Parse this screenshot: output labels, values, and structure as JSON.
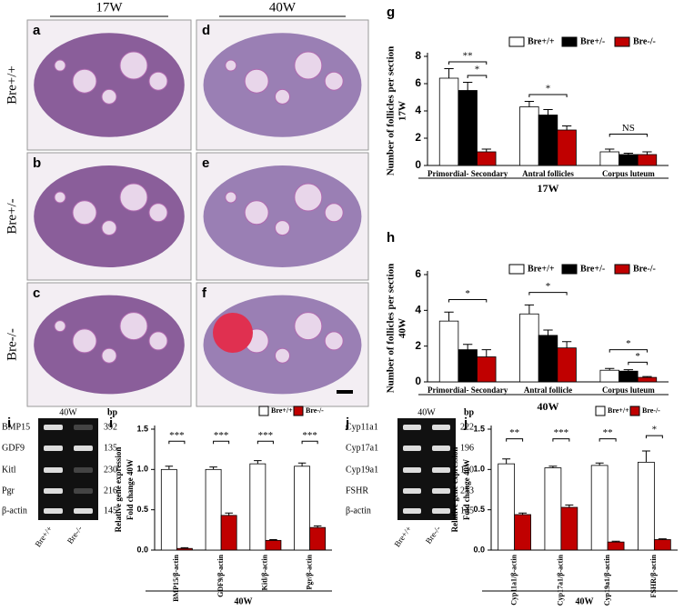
{
  "histology": {
    "columns": [
      "17W",
      "40W"
    ],
    "rows": [
      "Bre+/+",
      "Bre+/-",
      "Bre-/-"
    ],
    "panels": [
      "a",
      "d",
      "b",
      "e",
      "c",
      "f"
    ]
  },
  "gels": [
    {
      "panel": "i",
      "header": "40W",
      "bp_label": "bp",
      "genes": [
        "BMP15",
        "GDF9",
        "Kitl",
        "Pgr",
        "β-actin"
      ],
      "sizes": [
        392,
        135,
        230,
        216,
        145
      ],
      "lanes": [
        "Bre+/+",
        "Bre-/-"
      ]
    },
    {
      "panel": "j",
      "header": "40W",
      "bp_label": "bp",
      "genes": [
        "Cyp11a1",
        "Cyp17a1",
        "Cyp19a1",
        "FSHR",
        "β-actin"
      ],
      "sizes": [
        222,
        196,
        130,
        213,
        145
      ],
      "lanes": [
        "Bre+/+",
        "Bre-/-"
      ]
    }
  ],
  "chart_data": [
    {
      "type": "bar",
      "panel": "g",
      "ylabel": [
        "Number of follicles per section",
        "17W"
      ],
      "xlabel": "17W",
      "categories": [
        "Primordial- Secondary",
        "Antral follicles",
        "Corpus luteum"
      ],
      "series": [
        {
          "name": "Bre+/+",
          "color": "#ffffff",
          "values": [
            6.4,
            4.3,
            1.0
          ],
          "errors": [
            0.7,
            0.4,
            0.2
          ]
        },
        {
          "name": "Bre+/-",
          "color": "#000000",
          "values": [
            5.5,
            3.7,
            0.8
          ],
          "errors": [
            0.6,
            0.4,
            0.1
          ]
        },
        {
          "name": "Bre-/-",
          "color": "#c00000",
          "values": [
            1.0,
            2.6,
            0.8
          ],
          "errors": [
            0.2,
            0.3,
            0.2
          ]
        }
      ],
      "ylim": [
        0,
        8
      ],
      "yticks": [
        0,
        2,
        4,
        6,
        8
      ],
      "annotations": [
        "**",
        "*",
        "*",
        "NS"
      ]
    },
    {
      "type": "bar",
      "panel": "h",
      "ylabel": [
        "Number of follicles per section",
        "40W"
      ],
      "xlabel": "40W",
      "categories": [
        "Primordial- Secondary",
        "Antral follicle",
        "Corpus luteum"
      ],
      "series": [
        {
          "name": "Bre+/+",
          "color": "#ffffff",
          "values": [
            3.4,
            3.8,
            0.65
          ],
          "errors": [
            0.5,
            0.5,
            0.1
          ]
        },
        {
          "name": "Bre+/-",
          "color": "#000000",
          "values": [
            1.8,
            2.6,
            0.6
          ],
          "errors": [
            0.3,
            0.3,
            0.08
          ]
        },
        {
          "name": "Bre-/-",
          "color": "#c00000",
          "values": [
            1.4,
            1.9,
            0.25
          ],
          "errors": [
            0.4,
            0.35,
            0.05
          ]
        }
      ],
      "ylim": [
        0,
        6
      ],
      "yticks": [
        0,
        2,
        4,
        6
      ],
      "annotations": [
        "*",
        "*",
        "*",
        "*"
      ]
    },
    {
      "type": "bar",
      "panel": "i",
      "ylabel": [
        "Relative gene expression",
        "Fold change 40W"
      ],
      "xlabel": "40W",
      "categories": [
        "BMP15/β-actin",
        "GDF9/β-actin",
        "Kitl/β-actin",
        "Pgr/β-actin"
      ],
      "series": [
        {
          "name": "Bre+/+",
          "color": "#ffffff",
          "values": [
            1.0,
            1.0,
            1.07,
            1.04
          ],
          "errors": [
            0.04,
            0.03,
            0.04,
            0.04
          ]
        },
        {
          "name": "Bre-/-",
          "color": "#c00000",
          "values": [
            0.02,
            0.43,
            0.12,
            0.28
          ],
          "errors": [
            0.01,
            0.03,
            0.01,
            0.02
          ]
        }
      ],
      "ylim": [
        0,
        1.5
      ],
      "yticks": [
        {
          "value": 0,
          "label": "0.0"
        },
        {
          "value": 0.5,
          "label": "0.5"
        },
        {
          "value": 1,
          "label": "1.0"
        },
        {
          "value": 1.5,
          "label": "1.5"
        }
      ],
      "annotations": [
        "***",
        "***",
        "***",
        "***"
      ]
    },
    {
      "type": "bar",
      "panel": "j",
      "ylabel": [
        "Relative gene expression",
        "Fold change 40W"
      ],
      "xlabel": "40W",
      "categories": [
        "Cyp11a1/β-actin",
        "Cyp17a1/β-actin",
        "Cyp19a1/β-actin",
        "FSHR/β-actin"
      ],
      "series": [
        {
          "name": "Bre+/+",
          "color": "#ffffff",
          "values": [
            1.07,
            1.02,
            1.05,
            1.09
          ],
          "errors": [
            0.06,
            0.02,
            0.03,
            0.14
          ]
        },
        {
          "name": "Bre-/-",
          "color": "#c00000",
          "values": [
            0.44,
            0.53,
            0.1,
            0.13
          ],
          "errors": [
            0.02,
            0.03,
            0.01,
            0.01
          ]
        }
      ],
      "ylim": [
        0,
        1.5
      ],
      "yticks": [
        {
          "value": 0,
          "label": "0.0"
        },
        {
          "value": 0.5,
          "label": "0.5"
        },
        {
          "value": 1,
          "label": "1.0"
        },
        {
          "value": 1.5,
          "label": "1.5"
        }
      ],
      "annotations": [
        "**",
        "***",
        "**",
        "*"
      ]
    }
  ]
}
